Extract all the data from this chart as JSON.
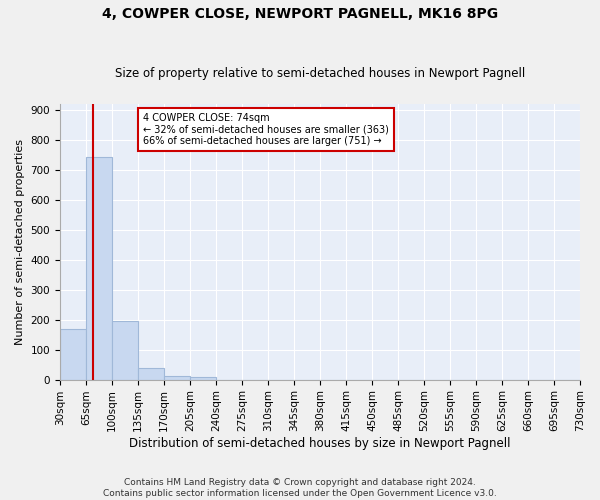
{
  "title": "4, COWPER CLOSE, NEWPORT PAGNELL, MK16 8PG",
  "subtitle": "Size of property relative to semi-detached houses in Newport Pagnell",
  "xlabel": "Distribution of semi-detached houses by size in Newport Pagnell",
  "ylabel": "Number of semi-detached properties",
  "footer_line1": "Contains HM Land Registry data © Crown copyright and database right 2024.",
  "footer_line2": "Contains public sector information licensed under the Open Government Licence v3.0.",
  "bar_edges": [
    30,
    65,
    100,
    135,
    170,
    205,
    240,
    275,
    310,
    345,
    380,
    415,
    450,
    485,
    520,
    555,
    590,
    625,
    660,
    695,
    730
  ],
  "bar_heights": [
    170,
    745,
    195,
    40,
    12,
    8,
    0,
    0,
    0,
    0,
    0,
    0,
    0,
    0,
    0,
    0,
    0,
    0,
    0,
    0
  ],
  "bar_color": "#c8d8f0",
  "bar_edgecolor": "#a0b8d8",
  "property_size": 74,
  "property_line_color": "#cc0000",
  "annotation_line1": "4 COWPER CLOSE: 74sqm",
  "annotation_line2": "← 32% of semi-detached houses are smaller (363)",
  "annotation_line3": "66% of semi-detached houses are larger (751) →",
  "annotation_box_color": "#ffffff",
  "annotation_box_edgecolor": "#cc0000",
  "ylim": [
    0,
    920
  ],
  "yticks": [
    0,
    100,
    200,
    300,
    400,
    500,
    600,
    700,
    800,
    900
  ],
  "background_color": "#e8eef8",
  "grid_color": "#ffffff",
  "title_fontsize": 10,
  "subtitle_fontsize": 8.5,
  "ylabel_fontsize": 8,
  "xlabel_fontsize": 8.5,
  "tick_fontsize": 7.5,
  "footer_fontsize": 6.5,
  "fig_facecolor": "#f0f0f0"
}
